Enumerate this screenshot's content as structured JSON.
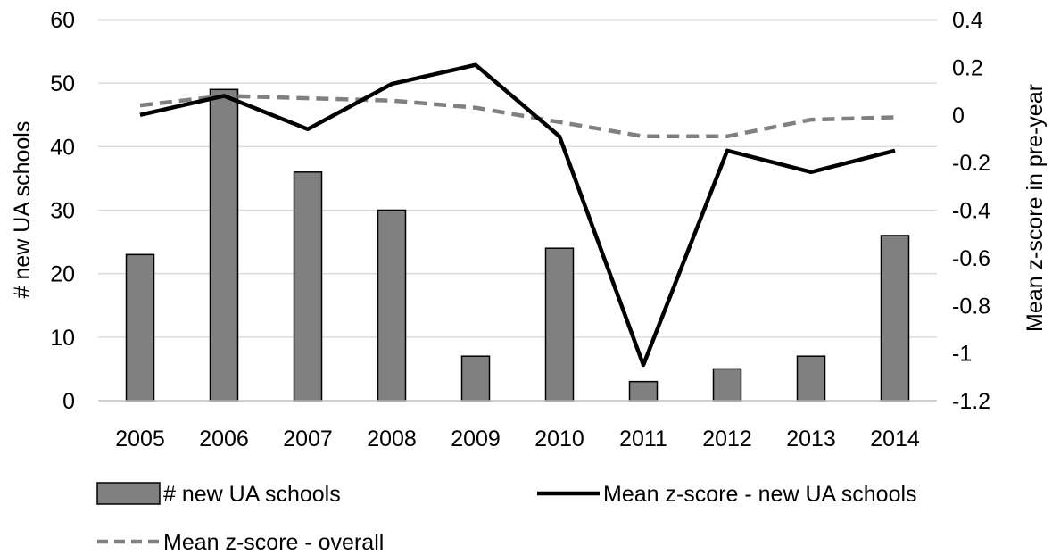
{
  "chart_data": {
    "type": "bar",
    "categories": [
      "2005",
      "2006",
      "2007",
      "2008",
      "2009",
      "2010",
      "2011",
      "2012",
      "2013",
      "2014"
    ],
    "series": [
      {
        "name": "# new UA schools",
        "type": "bar",
        "axis": "left",
        "color": "#808080",
        "values": [
          23,
          49,
          36,
          30,
          7,
          24,
          3,
          5,
          7,
          26
        ]
      },
      {
        "name": "Mean z-score - new UA schools",
        "type": "line",
        "axis": "right",
        "color": "#000000",
        "style": "solid",
        "values": [
          0.0,
          0.08,
          -0.06,
          0.13,
          0.21,
          -0.09,
          -1.05,
          -0.15,
          -0.24,
          -0.15
        ]
      },
      {
        "name": "Mean z-score - overall",
        "type": "line",
        "axis": "right",
        "color": "#808080",
        "style": "dashed",
        "values": [
          0.04,
          0.08,
          0.07,
          0.06,
          0.03,
          -0.03,
          -0.09,
          -0.09,
          -0.02,
          -0.01
        ]
      }
    ],
    "ylabel": "# new UA schools",
    "y2label": "Mean z-score in pre-year",
    "ylim": [
      0,
      60
    ],
    "y2lim": [
      -1.2,
      0.4
    ],
    "yticks": [
      "0",
      "10",
      "20",
      "30",
      "40",
      "50",
      "60"
    ],
    "y2ticks": [
      "-1.2",
      "-1",
      "-0.8",
      "-0.6",
      "-0.4",
      "-0.2",
      "0",
      "0.2",
      "0.4"
    ],
    "grid": true,
    "legend_position": "bottom"
  }
}
